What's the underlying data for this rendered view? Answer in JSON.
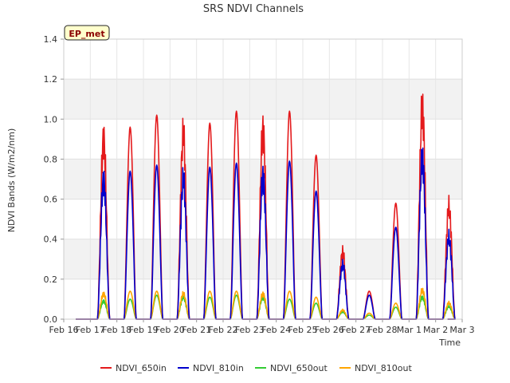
{
  "chart_data": {
    "type": "line",
    "title": "SRS NDVI Channels",
    "xlabel": "Time",
    "ylabel": "NDVI Bands (W/m2/nm)",
    "badge": "EP_met",
    "ylim": [
      0,
      1.4
    ],
    "yticks": [
      "0.0",
      "0.2",
      "0.4",
      "0.6",
      "0.8",
      "1.0",
      "1.2",
      "1.4"
    ],
    "xlim": [
      0,
      15
    ],
    "xticks": [
      "Feb 16",
      "Feb 17",
      "Feb 18",
      "Feb 19",
      "Feb 20",
      "Feb 21",
      "Feb 22",
      "Feb 23",
      "Feb 24",
      "Feb 25",
      "Feb 26",
      "Feb 27",
      "Feb 28",
      "Mar 1",
      "Mar 2",
      "Mar 3"
    ],
    "x_unit": "days since Feb 16",
    "daily_peaks": {
      "days": [
        1,
        2,
        3,
        4,
        5,
        6,
        7,
        8,
        9,
        10,
        11,
        12,
        13,
        14
      ],
      "NDVI_650in": [
        1.0,
        0.96,
        1.02,
        1.02,
        0.98,
        1.04,
        1.05,
        1.04,
        0.82,
        0.37,
        0.14,
        0.58,
        1.17,
        0.62
      ],
      "NDVI_810in": [
        0.77,
        0.74,
        0.77,
        0.77,
        0.76,
        0.78,
        0.79,
        0.79,
        0.64,
        0.3,
        0.12,
        0.46,
        0.89,
        0.45
      ],
      "NDVI_650out": [
        0.1,
        0.1,
        0.12,
        0.12,
        0.11,
        0.12,
        0.12,
        0.1,
        0.08,
        0.04,
        0.02,
        0.06,
        0.12,
        0.07
      ],
      "NDVI_810out": [
        0.14,
        0.14,
        0.14,
        0.14,
        0.14,
        0.14,
        0.14,
        0.14,
        0.11,
        0.05,
        0.03,
        0.08,
        0.16,
        0.09
      ]
    },
    "series": [
      {
        "name": "NDVI_650in",
        "color": "#e41a1c",
        "key": "NDVI_650in"
      },
      {
        "name": "NDVI_810in",
        "color": "#0000cd",
        "key": "NDVI_810in"
      },
      {
        "name": "NDVI_650out",
        "color": "#33cc33",
        "key": "NDVI_650out"
      },
      {
        "name": "NDVI_810out",
        "color": "#ffa500",
        "key": "NDVI_810out"
      }
    ],
    "legend_position": "bottom"
  }
}
